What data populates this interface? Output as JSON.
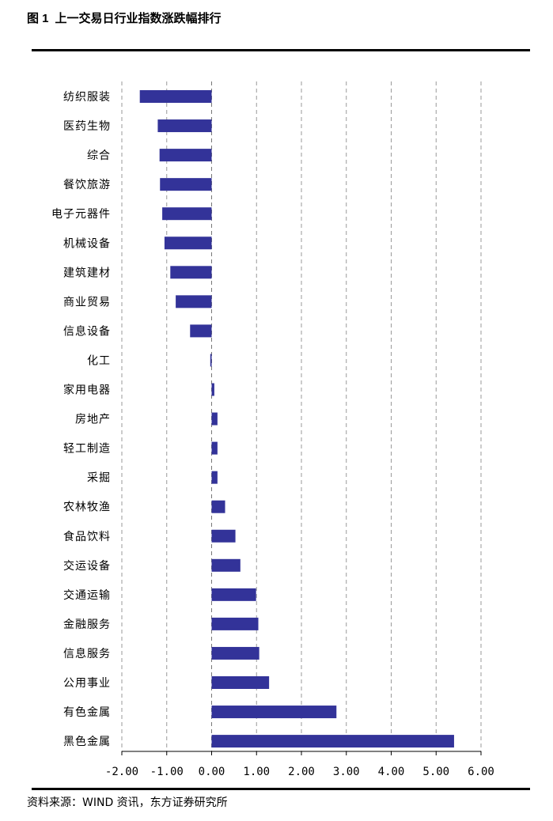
{
  "header": {
    "figure_number": "图 1",
    "title": "上一交易日行业指数涨跌幅排行"
  },
  "footer": {
    "source": "资料来源：WIND 资讯，东方证券研究所"
  },
  "colors": {
    "bar": "#333399",
    "grid": "#999999",
    "axis": "#000000"
  },
  "chart_data": {
    "type": "bar",
    "orientation": "horizontal",
    "title": "上一交易日行业指数涨跌幅排行",
    "xlabel": "",
    "ylabel": "",
    "xlim": [
      -2.0,
      6.0
    ],
    "ticks": [
      -2.0,
      -1.0,
      0.0,
      1.0,
      2.0,
      3.0,
      4.0,
      5.0,
      6.0
    ],
    "tick_labels": [
      "-2.00",
      "-1.00",
      "0.00",
      "1.00",
      "2.00",
      "3.00",
      "4.00",
      "5.00",
      "6.00"
    ],
    "grid": "vertical dashed",
    "legend": "none",
    "categories": [
      "纺织服装",
      "医药生物",
      "综合",
      "餐饮旅游",
      "电子元器件",
      "机械设备",
      "建筑建材",
      "商业贸易",
      "信息设备",
      "化工",
      "家用电器",
      "房地产",
      "轻工制造",
      "采掘",
      "农林牧渔",
      "食品饮料",
      "交运设备",
      "交通运输",
      "金融服务",
      "信息服务",
      "公用事业",
      "有色金属",
      "黑色金属"
    ],
    "values": [
      -1.6,
      -1.2,
      -1.16,
      -1.15,
      -1.1,
      -1.05,
      -0.92,
      -0.8,
      -0.48,
      -0.03,
      0.06,
      0.13,
      0.13,
      0.13,
      0.3,
      0.53,
      0.64,
      0.99,
      1.04,
      1.06,
      1.28,
      2.78,
      5.4
    ]
  }
}
